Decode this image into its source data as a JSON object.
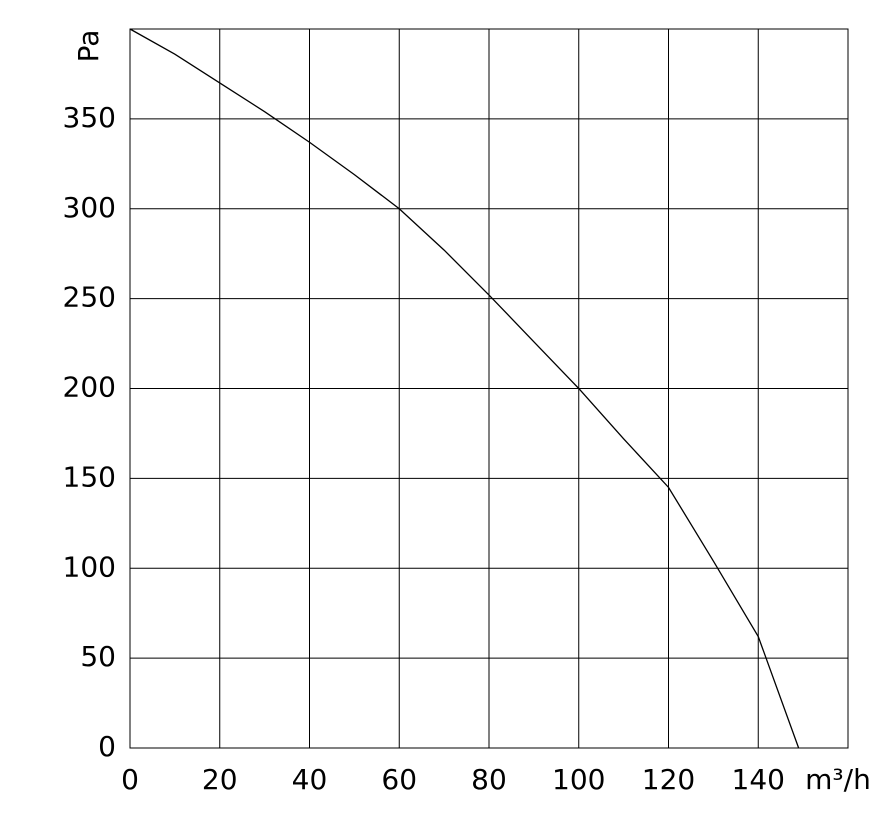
{
  "chart_data": {
    "type": "line",
    "x_label": "m³/h",
    "y_label": "Pa",
    "x": [
      0,
      10,
      20,
      30,
      40,
      50,
      60,
      70,
      80,
      90,
      100,
      110,
      120,
      130,
      140,
      149
    ],
    "series": [
      {
        "color": "#000000",
        "values": [
          400,
          386,
          370,
          354,
          337,
          319,
          300,
          277,
          252,
          226,
          200,
          172,
          145,
          104,
          62,
          0
        ]
      }
    ],
    "xlim": [
      0,
      160
    ],
    "ylim": [
      0,
      400
    ],
    "xticks": [
      0,
      20,
      40,
      60,
      80,
      100,
      120,
      140
    ],
    "yticks": [
      0,
      50,
      100,
      150,
      200,
      250,
      300,
      350
    ],
    "grid": true
  }
}
